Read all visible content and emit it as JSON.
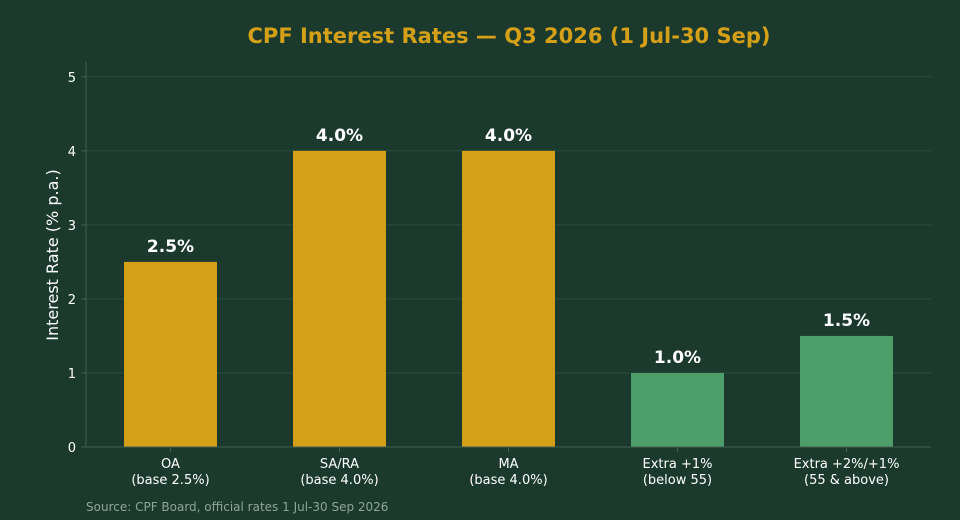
{
  "chart_data": {
    "type": "bar",
    "title": "CPF Interest Rates — Q3 2026 (1 Jul-30 Sep)",
    "ylabel": "Interest Rate (% p.a.)",
    "xlabel": "",
    "ylim": [
      0,
      5.2
    ],
    "yticks": [
      0,
      1,
      2,
      3,
      4,
      5
    ],
    "grid": true,
    "categories": [
      [
        "OA",
        "(base 2.5%)"
      ],
      [
        "SA/RA",
        "(base 4.0%)"
      ],
      [
        "MA",
        "(base 4.0%)"
      ],
      [
        "Extra +1%",
        "(below 55)"
      ],
      [
        "Extra +2%/+1%",
        "(55 & above)"
      ]
    ],
    "values": [
      2.5,
      4.0,
      4.0,
      1.0,
      1.5
    ],
    "data_labels": [
      "2.5%",
      "4.0%",
      "4.0%",
      "1.0%",
      "1.5%"
    ],
    "bar_colors": [
      "#d4a017",
      "#d4a017",
      "#d4a017",
      "#4e9e6b",
      "#4e9e6b"
    ],
    "source": "Source: CPF Board, official rates 1 Jul-30 Sep 2026"
  },
  "colors": {
    "background": "#1b3a2d",
    "title": "#d4a017",
    "grid": "#2a4d3c",
    "axis": "#3f6351",
    "text": "#ffffff",
    "source": "#8fa59a"
  }
}
